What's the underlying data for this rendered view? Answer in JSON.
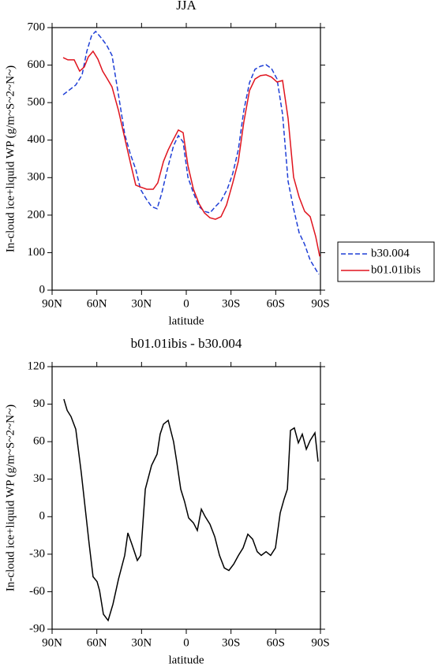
{
  "chart_data": [
    {
      "type": "line",
      "title": "JJA",
      "xlabel": "latitude",
      "ylabel": "In-cloud ice+liquid WP (g/m~S~2~N~)",
      "xlim": [
        90,
        -90
      ],
      "xticks": [
        {
          "value": 90,
          "label": "90N"
        },
        {
          "value": 60,
          "label": "60N"
        },
        {
          "value": 30,
          "label": "30N"
        },
        0,
        {
          "value": -30,
          "label": "30S"
        },
        {
          "value": -60,
          "label": "60S"
        },
        {
          "value": -90,
          "label": "90S"
        }
      ],
      "ylim": [
        0,
        700
      ],
      "yticks": [
        0,
        100,
        200,
        300,
        400,
        500,
        600,
        700
      ],
      "legend": "right",
      "series": [
        {
          "name": "b30.004",
          "color": "#1f3fd6",
          "dash": "dashed",
          "x": [
            82.6,
            74.1,
            69.9,
            66.7,
            63.5,
            60.8,
            57.2,
            53.5,
            49.8,
            45.5,
            41.3,
            37.6,
            33.9,
            30.7,
            27,
            23.3,
            19.6,
            16.4,
            12.7,
            8.5,
            5.3,
            2.1,
            -1.1,
            -4.8,
            -8.5,
            -12.2,
            -15.9,
            -19.6,
            -23.3,
            -27.5,
            -31.2,
            -34.9,
            -38.6,
            -42.4,
            -46.1,
            -49.8,
            -53.5,
            -57.2,
            -60.9,
            -64.6,
            -68.3,
            -72,
            -75.7,
            -79.4,
            -83.1,
            -88.9
          ],
          "values": [
            521,
            547,
            574,
            637,
            679,
            690,
            673,
            654,
            626,
            521,
            416,
            364,
            322,
            269,
            244,
            223,
            217,
            259,
            322,
            385,
            412,
            395,
            301,
            259,
            223,
            210,
            206,
            223,
            238,
            269,
            311,
            374,
            479,
            553,
            589,
            597,
            601,
            591,
            563,
            469,
            290,
            217,
            153,
            122,
            80,
            42
          ]
        },
        {
          "name": "b01.01ibis",
          "color": "#e0141e",
          "dash": "solid",
          "x": [
            82.6,
            79.4,
            75.2,
            71.5,
            68.4,
            65.7,
            62.5,
            59.3,
            56.1,
            52.9,
            49.8,
            45.5,
            41.3,
            37,
            33.9,
            30.7,
            26.5,
            22.2,
            19.1,
            15.3,
            12.1,
            9,
            5.3,
            2.1,
            -1.1,
            -4.8,
            -8.5,
            -12.2,
            -15.9,
            -19.6,
            -23.3,
            -27,
            -31.2,
            -34.9,
            -38.6,
            -42.4,
            -46.1,
            -49.8,
            -53.5,
            -57.2,
            -60.9,
            -64.6,
            -68.3,
            -72,
            -75.7,
            -79.4,
            -83.1,
            -86.8,
            -89.5
          ],
          "values": [
            620,
            614,
            614,
            584,
            595,
            622,
            637,
            616,
            584,
            563,
            542,
            479,
            406,
            332,
            280,
            275,
            269,
            269,
            286,
            343,
            374,
            399,
            427,
            420,
            332,
            269,
            231,
            206,
            193,
            189,
            196,
            227,
            286,
            343,
            448,
            532,
            563,
            572,
            574,
            568,
            555,
            559,
            458,
            301,
            248,
            210,
            196,
            143,
            90
          ]
        }
      ]
    },
    {
      "type": "line",
      "title": "b01.01ibis - b30.004",
      "xlabel": "latitude",
      "ylabel": "In-cloud ice+liquid WP (g/m~S~2~N~)",
      "xlim": [
        90,
        -90
      ],
      "xticks": [
        {
          "value": 90,
          "label": "90N"
        },
        {
          "value": 60,
          "label": "60N"
        },
        {
          "value": 30,
          "label": "30N"
        },
        0,
        {
          "value": -30,
          "label": "30S"
        },
        {
          "value": -60,
          "label": "60S"
        },
        {
          "value": -90,
          "label": "90S"
        }
      ],
      "ylim": [
        -90,
        120
      ],
      "yticks": [
        -90,
        -60,
        -30,
        0,
        30,
        60,
        90,
        120
      ],
      "color": "#000000",
      "x": [
        82.1,
        79.9,
        77.3,
        74.1,
        70.4,
        65.1,
        62.5,
        59.8,
        58.2,
        55.6,
        52.4,
        49.2,
        45.5,
        41.3,
        39.2,
        36.5,
        32.8,
        30.6,
        27.5,
        23.3,
        19.6,
        17.5,
        15.3,
        12.1,
        8.5,
        6.4,
        3.7,
        1.1,
        -1.6,
        -4.8,
        -7.4,
        -10.1,
        -12.7,
        -15.9,
        -19.1,
        -22.3,
        -25.5,
        -28.6,
        -31.8,
        -35,
        -38.1,
        -41.3,
        -44.5,
        -47.6,
        -50.3,
        -53.5,
        -56.6,
        -59.8,
        -63,
        -65.6,
        -67.8,
        -69.9,
        -72.5,
        -75.2,
        -77.8,
        -80.5,
        -83.1,
        -86.3,
        -88.4
      ],
      "values": [
        94,
        85,
        80,
        70,
        35,
        -22,
        -48,
        -52,
        -59,
        -78,
        -83,
        -70,
        -50,
        -31,
        -13,
        -22,
        -35,
        -31,
        22,
        41,
        50,
        66,
        74,
        77,
        60,
        44,
        22,
        12,
        -1,
        -5,
        -11,
        6,
        0,
        -6,
        -16,
        -31,
        -41,
        -43,
        -38,
        -31,
        -25,
        -14,
        -18,
        -28,
        -31,
        -28,
        -31,
        -25,
        3,
        14,
        22,
        69,
        71,
        59,
        66,
        54,
        61,
        67,
        44
      ]
    }
  ]
}
